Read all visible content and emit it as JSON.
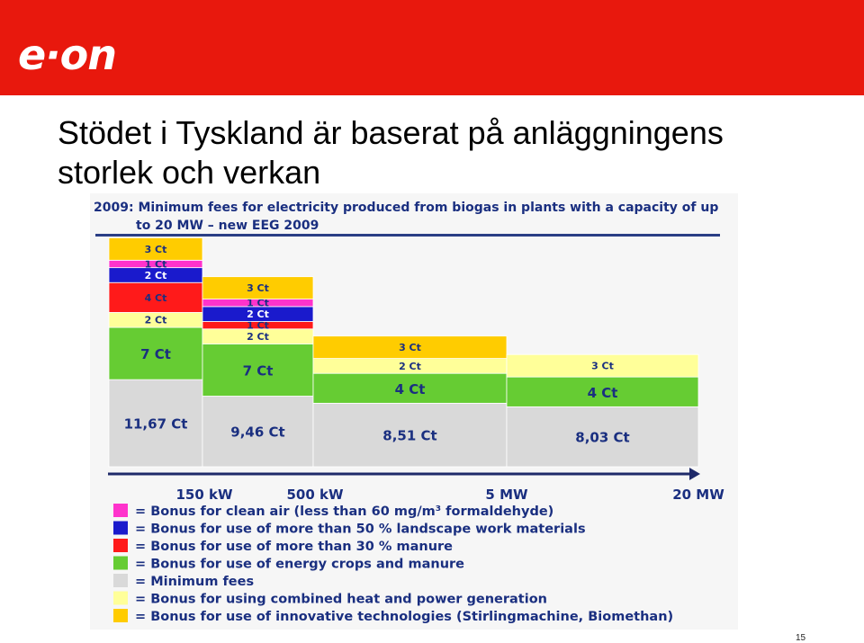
{
  "brand": {
    "logo_text": "e·on",
    "bar_color": "#e8180d"
  },
  "slide": {
    "title_line1": "Stödet i Tyskland är baserat på anläggningens",
    "title_line2": "storlek och verkan",
    "page_number": "15"
  },
  "chart_data": {
    "type": "bar",
    "title_line1": "2009: Minimum fees for electricity produced from biogas in plants with a capacity of up",
    "title_line2": "to 20 MW – new EEG 2009",
    "x_ticks": [
      "150 kW",
      "500 kW",
      "5 MW",
      "20 MW"
    ],
    "categories": [
      "up to 150 kW",
      "150 kW – 500 kW",
      "500 kW – 5 MW",
      "5 MW – 20 MW"
    ],
    "unit": "Ct",
    "series": [
      {
        "key": "min",
        "legend": "= Minimum fees",
        "color": "#d9d9d9",
        "values": [
          11.67,
          9.46,
          8.51,
          8.03
        ],
        "labels": [
          "11,67 Ct",
          "9,46 Ct",
          "8,51 Ct",
          "8,03 Ct"
        ]
      },
      {
        "key": "energy",
        "legend": "= Bonus for use of energy crops and manure",
        "color": "#66cc33",
        "values": [
          7,
          7,
          4,
          4
        ],
        "labels": [
          "7 Ct",
          "7 Ct",
          "4 Ct",
          "4 Ct"
        ]
      },
      {
        "key": "chp",
        "legend": "= Bonus for using combined heat and power generation",
        "color": "#ffff99",
        "values": [
          2,
          2,
          2,
          3
        ],
        "labels": [
          "2 Ct",
          "2 Ct",
          "2 Ct",
          "3 Ct"
        ]
      },
      {
        "key": "manure",
        "legend": "= Bonus for use of more than 30 % manure",
        "color": "#ff1a1a",
        "values": [
          4,
          1,
          0,
          0
        ],
        "labels": [
          "4 Ct",
          "1 Ct",
          "",
          ""
        ]
      },
      {
        "key": "landscape",
        "legend": "= Bonus for use of more than 50 % landscape work materials",
        "color": "#1a1acc",
        "values": [
          2,
          2,
          0,
          0
        ],
        "labels": [
          "2 Ct",
          "2 Ct",
          "",
          ""
        ]
      },
      {
        "key": "cleanair",
        "legend": "= Bonus for clean air (less than 60 mg/m³ formaldehyde)",
        "color": "#ff33cc",
        "values": [
          1,
          1,
          0,
          0
        ],
        "labels": [
          "1 Ct",
          "1 Ct",
          "",
          ""
        ]
      },
      {
        "key": "innov",
        "legend": "= Bonus for use of innovative technologies (Stirlingmachine, Biomethan)",
        "color": "#ffcc00",
        "values": [
          3,
          3,
          3,
          0
        ],
        "labels": [
          "3 Ct",
          "3 Ct",
          "3 Ct",
          ""
        ]
      }
    ],
    "legend_order": [
      "cleanair",
      "landscape",
      "manure",
      "energy",
      "min",
      "chp",
      "innov"
    ],
    "legend_placement": "bottom-left",
    "grid": false
  }
}
